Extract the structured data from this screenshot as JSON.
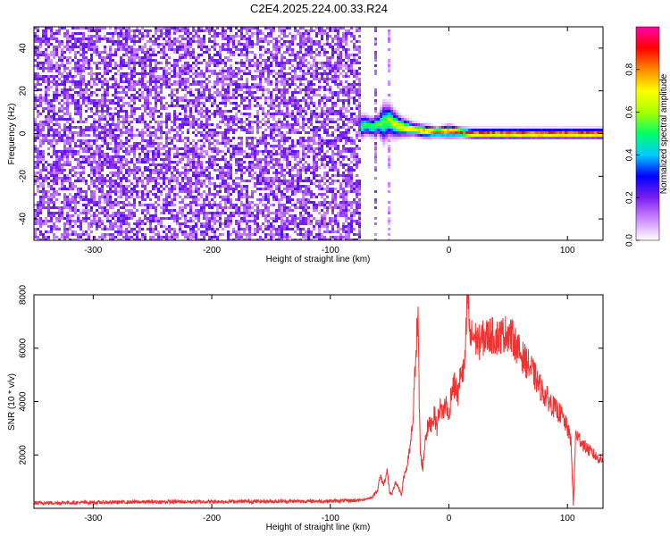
{
  "title": "C2E4.2025.224.00.33.R24",
  "chart_data": [
    {
      "type": "heatmap",
      "xlabel": "Height of straight line (km)",
      "ylabel": "Frequency (Hz)",
      "xlim": [
        -350,
        130
      ],
      "ylim": [
        -50,
        50
      ],
      "xticks": [
        -300,
        -200,
        -100,
        0,
        100
      ],
      "yticks": [
        -40,
        -20,
        0,
        20,
        40
      ],
      "colorbar": {
        "label": "Normalized spectral amplitude",
        "range": [
          0.0,
          1.0
        ],
        "ticks": [
          "0.0",
          "0.2",
          "0.4",
          "0.6",
          "0.8"
        ],
        "tick_values": [
          0.0,
          0.2,
          0.4,
          0.6,
          0.8
        ],
        "colors": [
          "#ffffff",
          "#cc88ff",
          "#7a1ef0",
          "#0000ff",
          "#00ccff",
          "#00ff66",
          "#aaff00",
          "#ffff00",
          "#ff8800",
          "#ff0000",
          "#ff00aa"
        ]
      },
      "noise_region": {
        "x_range": [
          -350,
          -75
        ],
        "freq_range": [
          -50,
          50
        ],
        "amplitude": 0.15
      },
      "narrow_bands": [
        {
          "x": -62,
          "width": 3,
          "amplitude": 0.15
        },
        {
          "x": -51,
          "width": 3,
          "amplitude": 0.1
        }
      ],
      "carrier": {
        "x": [
          -75,
          -70,
          -65,
          -60,
          -55,
          -50,
          -45,
          -40,
          -30,
          -20,
          -10,
          0,
          10,
          20,
          40,
          60,
          80,
          100,
          110,
          130
        ],
        "freq": [
          3,
          4,
          3,
          4,
          5,
          6,
          4,
          3,
          2,
          1,
          0.5,
          1,
          0.5,
          0,
          0,
          0,
          0,
          0,
          0,
          0
        ],
        "halfwidth": [
          4,
          3,
          3,
          3,
          6,
          5,
          4,
          3,
          2,
          2,
          1.5,
          2,
          1.5,
          1.5,
          1.5,
          1.5,
          1.5,
          1.5,
          1.5,
          1.5
        ],
        "peak_amplitude": [
          0.5,
          0.6,
          0.55,
          0.6,
          0.6,
          0.65,
          0.7,
          0.75,
          0.8,
          0.85,
          0.9,
          0.92,
          0.95,
          0.97,
          0.98,
          0.98,
          0.98,
          0.98,
          0.98,
          0.98
        ]
      }
    },
    {
      "type": "line",
      "xlabel": "Height of straight line (km)",
      "ylabel": "SNR (10 * v/v)",
      "xlim": [
        -350,
        130
      ],
      "ylim": [
        0,
        8000
      ],
      "xticks": [
        -300,
        -200,
        -100,
        0,
        100
      ],
      "yticks": [
        2000,
        4000,
        6000,
        8000
      ],
      "series": [
        {
          "color": "#ee3333",
          "x": [
            -350,
            -300,
            -250,
            -200,
            -150,
            -100,
            -75,
            -65,
            -60,
            -58,
            -55,
            -52,
            -50,
            -48,
            -45,
            -42,
            -40,
            -38,
            -35,
            -32,
            -30,
            -28,
            -26,
            -25,
            -24,
            -22,
            -20,
            -18,
            -15,
            -12,
            -10,
            -8,
            -5,
            -2,
            0,
            2,
            5,
            8,
            10,
            12,
            14,
            15,
            16,
            18,
            20,
            25,
            30,
            35,
            40,
            45,
            50,
            55,
            60,
            65,
            70,
            75,
            80,
            85,
            90,
            95,
            100,
            103,
            105,
            107,
            110,
            115,
            120,
            125,
            130
          ],
          "y": [
            200,
            220,
            240,
            250,
            260,
            270,
            300,
            400,
            700,
            1200,
            900,
            1400,
            600,
            500,
            1000,
            700,
            500,
            1200,
            1600,
            2500,
            3500,
            6000,
            7000,
            4000,
            2000,
            1500,
            2600,
            3000,
            3200,
            3500,
            3000,
            3800,
            3600,
            4000,
            3200,
            4500,
            4600,
            4200,
            5200,
            5000,
            5800,
            7200,
            8000,
            6300,
            6500,
            6200,
            6400,
            6500,
            6400,
            6500,
            6600,
            6300,
            5800,
            5500,
            5200,
            4700,
            4300,
            4000,
            3700,
            3500,
            3000,
            2500,
            100,
            2800,
            2600,
            2300,
            2100,
            1900,
            1800
          ]
        }
      ]
    }
  ]
}
